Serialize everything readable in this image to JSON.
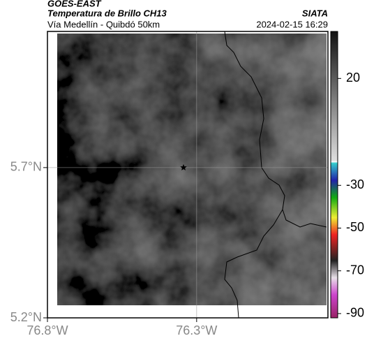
{
  "header": {
    "source": "GOES-EAST",
    "title": "Temperatura de Brillo CH13",
    "subtitle": "Vía Medellín - Quibdó 50km",
    "agency": "SIATA",
    "timestamp": "2024-02-15 16:29"
  },
  "map": {
    "xlim": [
      -76.8,
      -75.86
    ],
    "ylim": [
      5.2,
      6.153
    ],
    "xticks": [
      {
        "value": -76.8,
        "label": "76.8°W"
      },
      {
        "value": -76.3,
        "label": "76.3°W"
      }
    ],
    "yticks": [
      {
        "value": 5.2,
        "label": "5.2°N"
      },
      {
        "value": 5.7,
        "label": "5.7°N"
      }
    ],
    "grid": true,
    "marker": {
      "lon": -76.344,
      "lat": 5.7
    }
  },
  "colorbar": {
    "clim": [
      -92,
      42
    ],
    "ticks": [
      20,
      -30,
      -50,
      -70,
      -90
    ]
  }
}
